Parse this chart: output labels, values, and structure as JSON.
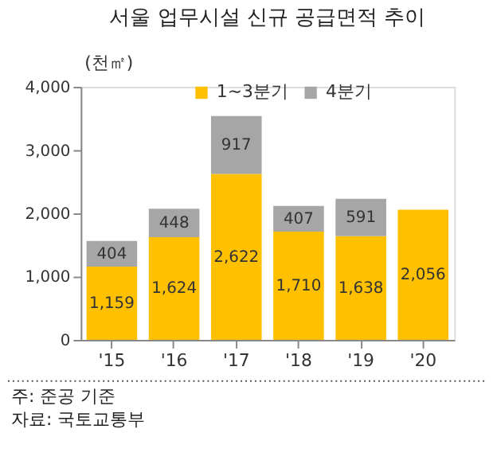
{
  "chart_data": {
    "type": "bar",
    "title": "서울 업무시설 신규 공급면적 추이",
    "ylabel": "(천㎡)",
    "categories": [
      "'15",
      "'16",
      "'17",
      "'18",
      "'19",
      "'20"
    ],
    "stacked": true,
    "series": [
      {
        "name": "1~3분기",
        "color": "#ffc000",
        "values": [
          1159,
          1624,
          2622,
          1710,
          1638,
          2056
        ],
        "value_labels": [
          "1,159",
          "1,624",
          "2,622",
          "1,710",
          "1,638",
          "2,056"
        ]
      },
      {
        "name": "4분기",
        "color": "#a6a6a6",
        "values": [
          404,
          448,
          917,
          407,
          591,
          null
        ],
        "value_labels": [
          "404",
          "448",
          "917",
          "407",
          "591",
          null
        ]
      }
    ],
    "ylim": [
      0,
      4000
    ],
    "yticks": [
      {
        "value": 0,
        "label": "0"
      },
      {
        "value": 1000,
        "label": "1,000"
      },
      {
        "value": 2000,
        "label": "2,000"
      },
      {
        "value": 3000,
        "label": "3,000"
      },
      {
        "value": 4000,
        "label": "4,000"
      }
    ],
    "grid": false,
    "legend": "top",
    "annotations": [
      "주: 준공 기준",
      "자료: 국토교통부"
    ]
  }
}
